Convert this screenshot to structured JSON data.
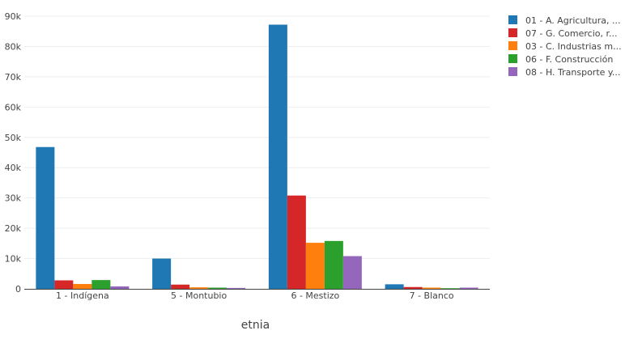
{
  "chart_data": {
    "type": "bar",
    "xlabel": "etnia",
    "ylabel": "",
    "ylim": [
      0,
      90000
    ],
    "yticks": [
      0,
      10000,
      20000,
      30000,
      40000,
      50000,
      60000,
      70000,
      80000,
      90000
    ],
    "ytick_labels": [
      "0",
      "10k",
      "20k",
      "30k",
      "40k",
      "50k",
      "60k",
      "70k",
      "80k",
      "90k"
    ],
    "categories": [
      "1 - Indígena",
      "5 - Montubio",
      "6 - Mestizo",
      "7 - Blanco"
    ],
    "grid": true,
    "legend": "top-right",
    "series": [
      {
        "name": "01 - A. Agricultura, ...",
        "color": "#1f77b4",
        "values": [
          46800,
          10000,
          87200,
          1500
        ]
      },
      {
        "name": "07 - G. Comercio, r...",
        "color": "#d62728",
        "values": [
          2800,
          1400,
          30800,
          600
        ]
      },
      {
        "name": "03 - C. Industrias m...",
        "color": "#ff7f0e",
        "values": [
          1600,
          500,
          15200,
          400
        ]
      },
      {
        "name": "06 - F. Construcción",
        "color": "#2ca02c",
        "values": [
          2900,
          400,
          15800,
          200
        ]
      },
      {
        "name": "08 - H. Transporte y...",
        "color": "#9467bd",
        "values": [
          800,
          300,
          10800,
          400
        ]
      }
    ]
  }
}
